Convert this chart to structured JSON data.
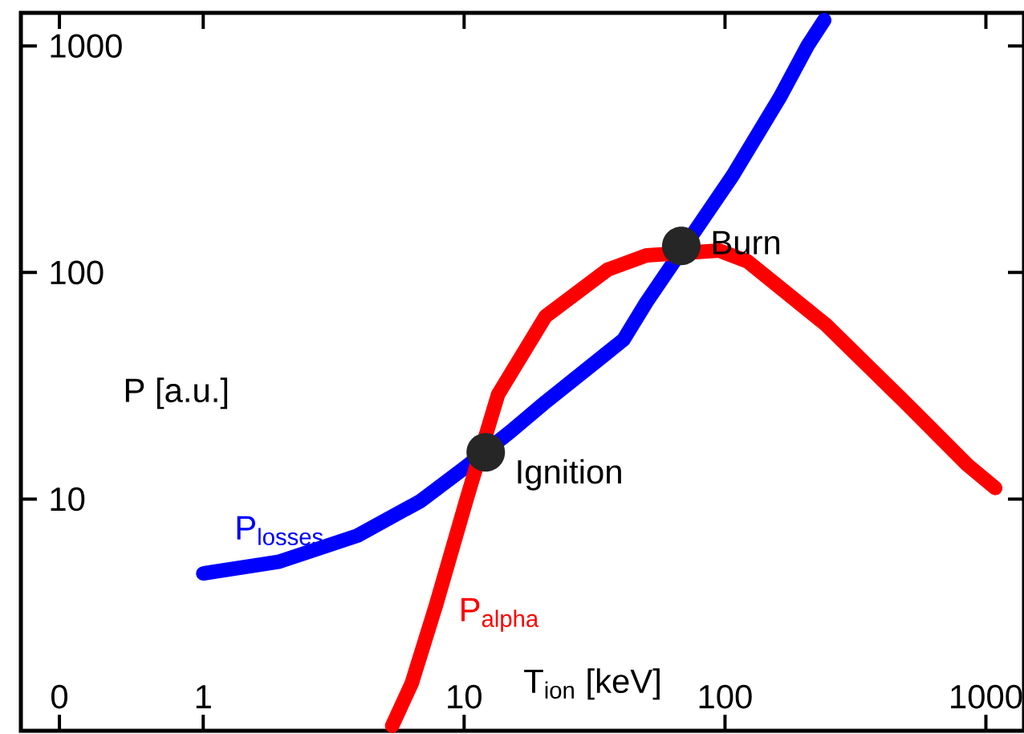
{
  "chart_data": {
    "type": "line",
    "xlabel": "T$_{ion}$ [keV]",
    "ylabel": "P [a.u.]",
    "log": "xy",
    "xlim": [
      0.2,
      1400
    ],
    "ylim": [
      0.95,
      1400
    ],
    "xticks": [
      {
        "value": 0.281,
        "label": "0"
      },
      1,
      10,
      100,
      1000
    ],
    "yticks": [
      10,
      100,
      1000
    ],
    "series": [
      {
        "name": "P$_{losses}$",
        "color": "#0000ff",
        "x": [
          1,
          1.96,
          3.9,
          6.8,
          10,
          15,
          20.5,
          40.8,
          50,
          107,
          162,
          207,
          240
        ],
        "values": [
          4.7,
          5.3,
          6.9,
          9.8,
          13.7,
          19.8,
          26.8,
          50.5,
          74,
          268,
          591,
          1000,
          1300
        ]
      },
      {
        "name": "P$_{alpha}$",
        "color": "#ff0000",
        "x": [
          5.3,
          6.3,
          7.8,
          10.3,
          13.5,
          20.5,
          35.5,
          50,
          95,
          122,
          243,
          486,
          848,
          1086
        ],
        "values": [
          1.0,
          1.54,
          3.4,
          10.3,
          29,
          64,
          103,
          119,
          125,
          112,
          59,
          27,
          14.2,
          11.2
        ]
      }
    ],
    "annotations": [
      {
        "text": "Ignition",
        "x": 12.1,
        "y": 16.1
      },
      {
        "text": "Burn",
        "x": 68,
        "y": 131
      }
    ]
  }
}
